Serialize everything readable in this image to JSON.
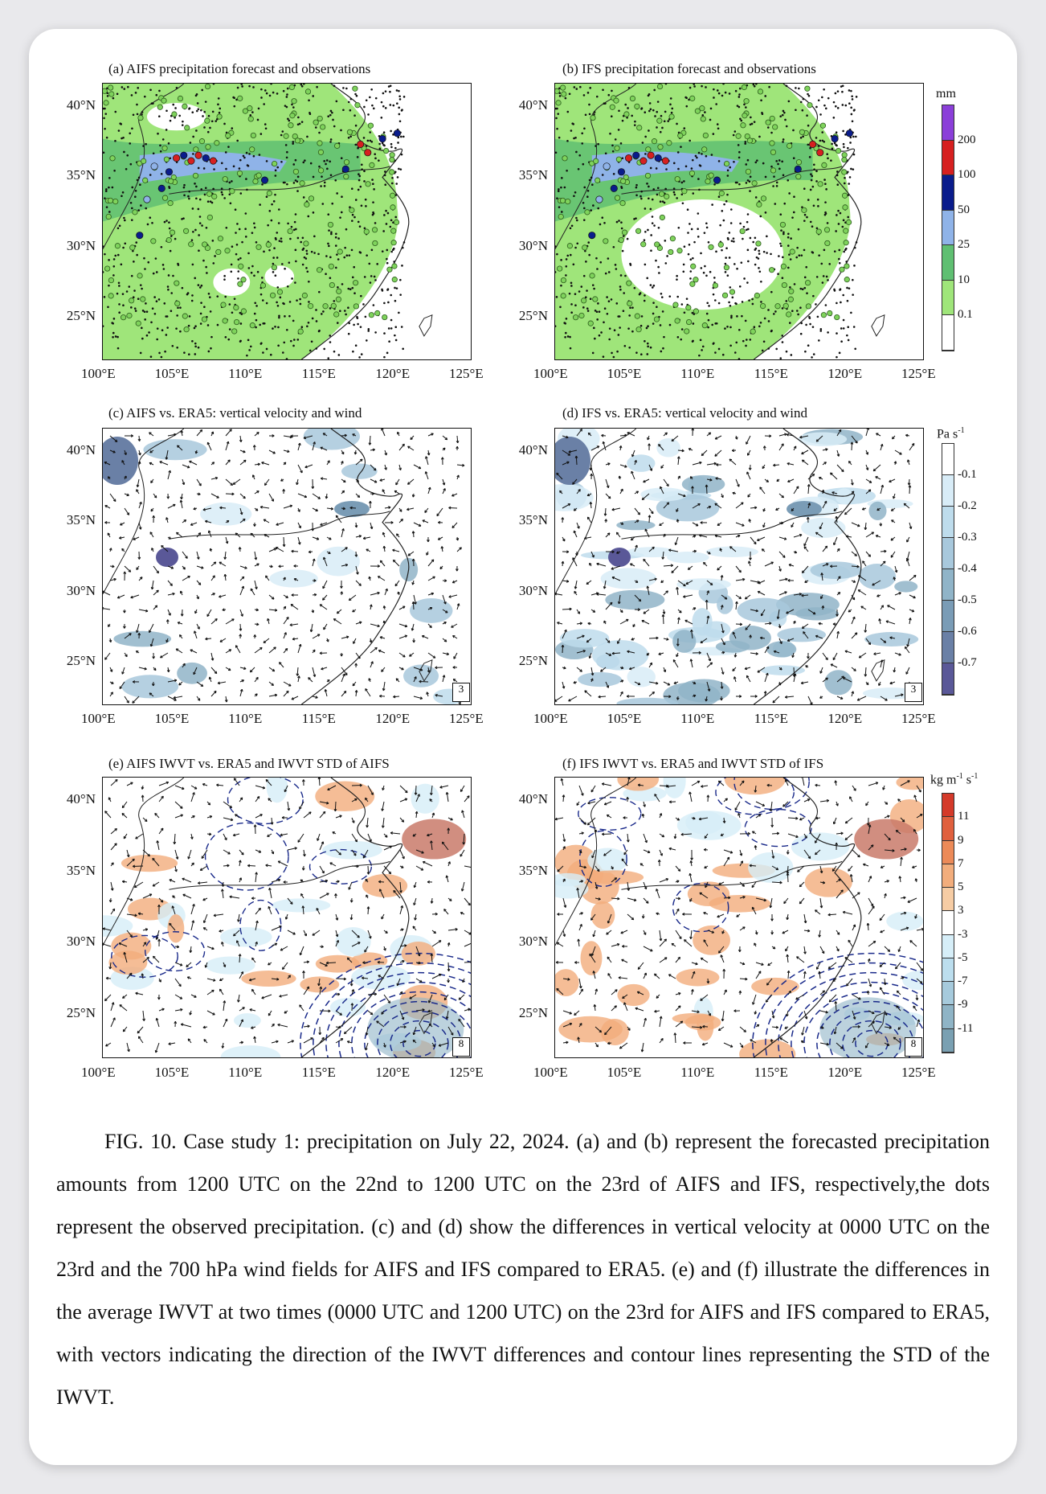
{
  "panels": [
    {
      "id": "a",
      "title": "(a) AIFS precipitation forecast and observations"
    },
    {
      "id": "b",
      "title": "(b) IFS precipitation forecast and observations"
    },
    {
      "id": "c",
      "title": "(c) AIFS vs. ERA5: vertical velocity and wind"
    },
    {
      "id": "d",
      "title": "(d) IFS vs. ERA5: vertical velocity and wind"
    },
    {
      "id": "e",
      "title": "(e) AIFS IWVT vs. ERA5 and IWVT STD of AIFS"
    },
    {
      "id": "f",
      "title": "(f) IFS IWVT vs. ERA5 and IWVT STD of IFS"
    }
  ],
  "axes": {
    "lon_ticks": [
      "100°E",
      "105°E",
      "110°E",
      "115°E",
      "120°E",
      "125°E"
    ],
    "lat_ticks": [
      "40°N",
      "35°N",
      "30°N",
      "25°N"
    ]
  },
  "reference_vectors": {
    "wind": "3",
    "iwvt": "8"
  },
  "colorbars": {
    "precip": {
      "unit": "mm",
      "labels": [
        "200",
        "100",
        "50",
        "25",
        "10",
        "0.1"
      ],
      "colors": [
        "#8b3fd9",
        "#d62020",
        "#0a1c8c",
        "#8fb3e8",
        "#5fbf72",
        "#9fe57a",
        "#ffffff"
      ]
    },
    "omega": {
      "unit": "Pa s",
      "unit_sup": "-1",
      "labels": [
        "-0.1",
        "-0.2",
        "-0.3",
        "-0.4",
        "-0.5",
        "-0.6",
        "-0.7"
      ],
      "colors": [
        "#ffffff",
        "#d8ecf7",
        "#bedcec",
        "#a8c8dc",
        "#90b4c8",
        "#7a9cb6",
        "#6a80a6",
        "#5a5898"
      ]
    },
    "iwvt": {
      "unit": "kg m",
      "unit_sup1": "-1",
      "unit_mid": " s",
      "unit_sup2": "-1",
      "labels": [
        "11",
        "9",
        "7",
        "5",
        "3",
        "-3",
        "-5",
        "-7",
        "-9",
        "-11"
      ],
      "colors": [
        "#d43a2a",
        "#e0603e",
        "#ec8a58",
        "#f2ad7c",
        "#f6cca4",
        "#ffffff",
        "#d6eef8",
        "#bcdeee",
        "#a6cadc",
        "#8fb4c6",
        "#7aa0b2"
      ]
    }
  },
  "caption": "FIG. 10. Case study 1: precipitation on July 22, 2024. (a) and (b) represent the forecasted precipitation amounts from 1200 UTC on the 22nd to 1200 UTC on the 23rd of AIFS and IFS, respectively,the dots represent the observed precipitation. (c) and (d) show the differences in vertical velocity at 0000 UTC on the 23rd and the 700 hPa wind fields for AIFS and IFS compared to ERA5. (e) and (f) illustrate the differences in the average IWVT at two times (0000 UTC and 1200 UTC) on the 23rd for AIFS and IFS compared to ERA5, with vectors indicating the direction of the IWVT differences and contour lines representing the STD of the IWVT."
}
